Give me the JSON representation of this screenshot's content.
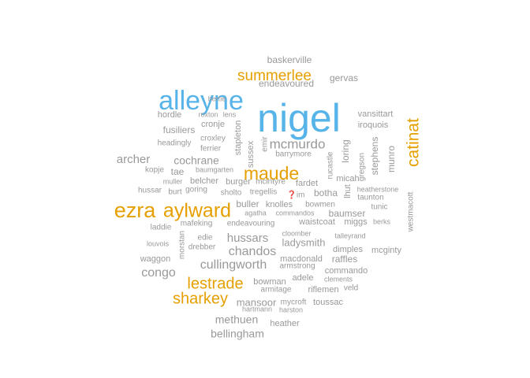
{
  "colors": {
    "gray": "#999999",
    "orange": "#E69F00",
    "blue": "#56B4E9"
  },
  "chart_data": {
    "type": "wordcloud",
    "words": [
      {
        "text": "nigel",
        "color": "blue"
      },
      {
        "text": "alleyne",
        "color": "blue"
      },
      {
        "text": "ezra",
        "color": "orange"
      },
      {
        "text": "aylward",
        "color": "orange"
      },
      {
        "text": "maude",
        "color": "orange"
      },
      {
        "text": "catinat",
        "color": "orange"
      },
      {
        "text": "summerlee",
        "color": "orange"
      },
      {
        "text": "lestrade",
        "color": "orange"
      },
      {
        "text": "sharkey",
        "color": "orange"
      },
      {
        "text": "mcmurdo",
        "color": "gray"
      },
      {
        "text": "cullingworth",
        "color": "gray"
      },
      {
        "text": "congo",
        "color": "gray"
      },
      {
        "text": "chandos",
        "color": "gray"
      },
      {
        "text": "hussars",
        "color": "gray"
      },
      {
        "text": "archer",
        "color": "gray"
      },
      {
        "text": "cochrane",
        "color": "gray"
      },
      {
        "text": "methuen",
        "color": "gray"
      },
      {
        "text": "bellingham",
        "color": "gray"
      },
      {
        "text": "mansoor",
        "color": "gray"
      },
      {
        "text": "ladysmith",
        "color": "gray"
      },
      {
        "text": "baskerville",
        "color": "gray"
      },
      {
        "text": "gervas",
        "color": "gray"
      },
      {
        "text": "endeavoured",
        "color": "gray"
      },
      {
        "text": "fusiliers",
        "color": "gray"
      },
      {
        "text": "munro",
        "color": "gray"
      },
      {
        "text": "stephens",
        "color": "gray"
      },
      {
        "text": "loring",
        "color": "gray"
      },
      {
        "text": "botha",
        "color": "gray"
      },
      {
        "text": "buller",
        "color": "gray"
      },
      {
        "text": "baumser",
        "color": "gray"
      },
      {
        "text": "raffles",
        "color": "gray"
      },
      {
        "text": "heather",
        "color": "gray"
      },
      {
        "text": "bowman",
        "color": "gray"
      },
      {
        "text": "macdonald",
        "color": "gray"
      },
      {
        "text": "commando",
        "color": "gray"
      },
      {
        "text": "riflemen",
        "color": "gray"
      },
      {
        "text": "toussac",
        "color": "gray"
      },
      {
        "text": "dimples",
        "color": "gray"
      },
      {
        "text": "mcginty",
        "color": "gray"
      },
      {
        "text": "waggon",
        "color": "gray"
      },
      {
        "text": "iroquois",
        "color": "gray"
      },
      {
        "text": "vansittart",
        "color": "gray"
      },
      {
        "text": "hordle",
        "color": "gray"
      },
      {
        "text": "cronje",
        "color": "gray"
      },
      {
        "text": "headingly",
        "color": "gray"
      },
      {
        "text": "ferrier",
        "color": "gray"
      },
      {
        "text": "croxley",
        "color": "gray"
      },
      {
        "text": "stapleton",
        "color": "gray"
      },
      {
        "text": "sussex",
        "color": "gray"
      },
      {
        "text": "emir",
        "color": "gray"
      },
      {
        "text": "barrymore",
        "color": "gray"
      },
      {
        "text": "kopje",
        "color": "gray"
      },
      {
        "text": "tae",
        "color": "gray"
      },
      {
        "text": "baumgarten",
        "color": "gray"
      },
      {
        "text": "muller",
        "color": "gray"
      },
      {
        "text": "belcher",
        "color": "gray"
      },
      {
        "text": "burger",
        "color": "gray"
      },
      {
        "text": "mcintyre",
        "color": "gray"
      },
      {
        "text": "fardet",
        "color": "gray"
      },
      {
        "text": "hussar",
        "color": "gray"
      },
      {
        "text": "burt",
        "color": "gray"
      },
      {
        "text": "goring",
        "color": "gray"
      },
      {
        "text": "sholto",
        "color": "gray"
      },
      {
        "text": "tregellis",
        "color": "gray"
      },
      {
        "text": "❓im",
        "color": "gray"
      },
      {
        "text": "micah",
        "color": "gray"
      },
      {
        "text": "lhut",
        "color": "gray"
      },
      {
        "text": "heatherstone",
        "color": "gray"
      },
      {
        "text": "taunton",
        "color": "gray"
      },
      {
        "text": "tunic",
        "color": "gray"
      },
      {
        "text": "westmacott",
        "color": "gray"
      },
      {
        "text": "gregson",
        "color": "gray"
      },
      {
        "text": "rucastle",
        "color": "gray"
      },
      {
        "text": "knolles",
        "color": "gray"
      },
      {
        "text": "bowmen",
        "color": "gray"
      },
      {
        "text": "agatha",
        "color": "gray"
      },
      {
        "text": "commandos",
        "color": "gray"
      },
      {
        "text": "waistcoat",
        "color": "gray"
      },
      {
        "text": "miggs",
        "color": "gray"
      },
      {
        "text": "berks",
        "color": "gray"
      },
      {
        "text": "laddie",
        "color": "gray"
      },
      {
        "text": "mafeking",
        "color": "gray"
      },
      {
        "text": "endeavouring",
        "color": "gray"
      },
      {
        "text": "louvois",
        "color": "gray"
      },
      {
        "text": "edie",
        "color": "gray"
      },
      {
        "text": "drebber",
        "color": "gray"
      },
      {
        "text": "morstan",
        "color": "gray"
      },
      {
        "text": "cloomber",
        "color": "gray"
      },
      {
        "text": "talleyrand",
        "color": "gray"
      },
      {
        "text": "armstrong",
        "color": "gray"
      },
      {
        "text": "adele",
        "color": "gray"
      },
      {
        "text": "clements",
        "color": "gray"
      },
      {
        "text": "armitage",
        "color": "gray"
      },
      {
        "text": "veld",
        "color": "gray"
      },
      {
        "text": "hartmann",
        "color": "gray"
      },
      {
        "text": "harston",
        "color": "gray"
      },
      {
        "text": "mycroft",
        "color": "gray"
      },
      {
        "text": "bertie",
        "color": "gray"
      },
      {
        "text": "roxton",
        "color": "gray"
      },
      {
        "text": "lens",
        "color": "gray"
      }
    ]
  }
}
